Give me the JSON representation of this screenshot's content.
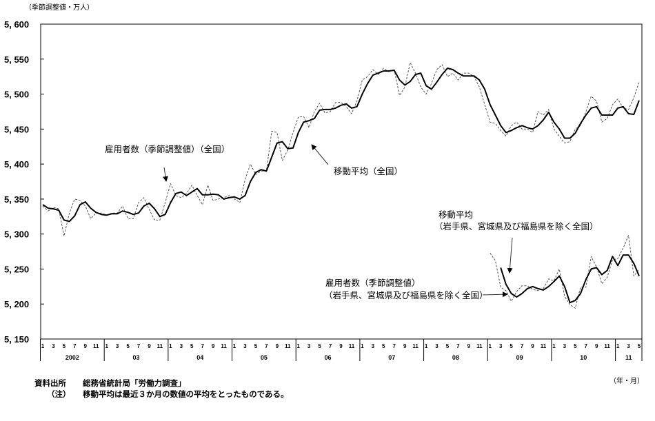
{
  "chart_data": {
    "type": "line",
    "unit_label": "（季節調整値・万人）",
    "xlabel": "（年・月）",
    "ylim": [
      5150,
      5600
    ],
    "ytick_step": 50,
    "y_ticks": [
      "5, 150",
      "5, 200",
      "5, 250",
      "5, 300",
      "5, 350",
      "5, 400",
      "5, 450",
      "5, 500",
      "5, 550",
      "5, 600"
    ],
    "grid": false,
    "x_start": "2002-01",
    "x_end": "2011-05",
    "month_ticks": [
      "1",
      "3",
      "5",
      "7",
      "9",
      "11"
    ],
    "last_year_month_ticks": [
      "1",
      "3",
      "5"
    ],
    "years": [
      "2002",
      "03",
      "04",
      "05",
      "06",
      "07",
      "08",
      "09",
      "10",
      "11"
    ],
    "series": [
      {
        "name": "雇用者数(季節調整値)(全国)",
        "style": "dashed",
        "start": "2002-01",
        "values": [
          5340,
          5333,
          5338,
          5336,
          5297,
          5330,
          5350,
          5348,
          5340,
          5322,
          5330,
          5330,
          5327,
          5330,
          5330,
          5340,
          5322,
          5322,
          5345,
          5352,
          5335,
          5320,
          5320,
          5345,
          5372,
          5355,
          5352,
          5358,
          5370,
          5355,
          5342,
          5370,
          5348,
          5350,
          5352,
          5355,
          5350,
          5345,
          5378,
          5400,
          5385,
          5390,
          5390,
          5447,
          5445,
          5405,
          5420,
          5445,
          5467,
          5468,
          5452,
          5475,
          5487,
          5473,
          5475,
          5488,
          5488,
          5482,
          5472,
          5490,
          5520,
          5525,
          5535,
          5528,
          5537,
          5532,
          5535,
          5498,
          5510,
          5545,
          5530,
          5510,
          5500,
          5515,
          5535,
          5542,
          5525,
          5530,
          5520,
          5530,
          5530,
          5525,
          5510,
          5485,
          5460,
          5458,
          5448,
          5440,
          5455,
          5460,
          5450,
          5450,
          5445,
          5475,
          5470,
          5478,
          5450,
          5440,
          5430,
          5432,
          5450,
          5455,
          5475,
          5497,
          5490,
          5460,
          5465,
          5485,
          5493,
          5480,
          5478,
          5495,
          5517
        ]
      },
      {
        "name": "移動平均(全国)",
        "style": "solid",
        "start": "2002-01",
        "values": [
          5342,
          5337,
          5336,
          5334,
          5320,
          5318,
          5326,
          5342,
          5346,
          5337,
          5331,
          5328,
          5327,
          5329,
          5329,
          5333,
          5331,
          5328,
          5330,
          5340,
          5344,
          5336,
          5325,
          5328,
          5345,
          5358,
          5360,
          5355,
          5360,
          5365,
          5356,
          5356,
          5357,
          5356,
          5350,
          5352,
          5353,
          5350,
          5355,
          5375,
          5388,
          5392,
          5390,
          5410,
          5430,
          5432,
          5422,
          5423,
          5445,
          5460,
          5462,
          5465,
          5477,
          5478,
          5478,
          5480,
          5484,
          5486,
          5480,
          5482,
          5500,
          5515,
          5527,
          5530,
          5533,
          5533,
          5534,
          5520,
          5513,
          5518,
          5528,
          5530,
          5512,
          5507,
          5517,
          5528,
          5537,
          5535,
          5530,
          5526,
          5526,
          5526,
          5520,
          5507,
          5485,
          5470,
          5455,
          5445,
          5448,
          5452,
          5455,
          5452,
          5450,
          5455,
          5463,
          5474,
          5460,
          5450,
          5437,
          5437,
          5444,
          5458,
          5470,
          5480,
          5482,
          5470,
          5470,
          5470,
          5480,
          5482,
          5472,
          5471,
          5491
        ]
      },
      {
        "name": "雇用者数(季節調整値)(岩手県、宮城県及び福島県を除く全国)",
        "style": "dashed",
        "start": "2009-01",
        "values": [
          5273,
          5262,
          5224,
          5219,
          5204,
          5218,
          5226,
          5226,
          5221,
          5219,
          5222,
          5236,
          5233,
          5250,
          5211,
          5199,
          5194,
          5224,
          5224,
          5268,
          5253,
          5229,
          5238,
          5263,
          5265,
          5280,
          5298,
          5240,
          5250
        ]
      },
      {
        "name": "移動平均(岩手県、宮城県及び福島県を除く全国)",
        "style": "solid",
        "start": "2009-03",
        "values": [
          5252,
          5228,
          5215,
          5210,
          5215,
          5222,
          5225,
          5222,
          5220,
          5225,
          5232,
          5240,
          5225,
          5202,
          5205,
          5215,
          5235,
          5250,
          5252,
          5242,
          5248,
          5268,
          5255,
          5270,
          5270,
          5258,
          5240
        ]
      }
    ]
  },
  "annotations": {
    "national_series": "雇用者数（季節調整値）（全国）",
    "national_ma": "移動平均（全国）",
    "excl_ma_line1": "移動平均",
    "excl_ma_line2": "（岩手県、宮城県及び福島県を除く全国）",
    "excl_series_line1": "雇用者数（季節調整値）",
    "excl_series_line2": "（岩手県、宮城県及び福島県を除く全国）"
  },
  "footer": {
    "source_label": "資料出所",
    "source_text": "総務省統計局「労働力調査」",
    "note_label": "（注）",
    "note_text": "移動平均は最近３か月の数値の平均をとったものである。"
  }
}
